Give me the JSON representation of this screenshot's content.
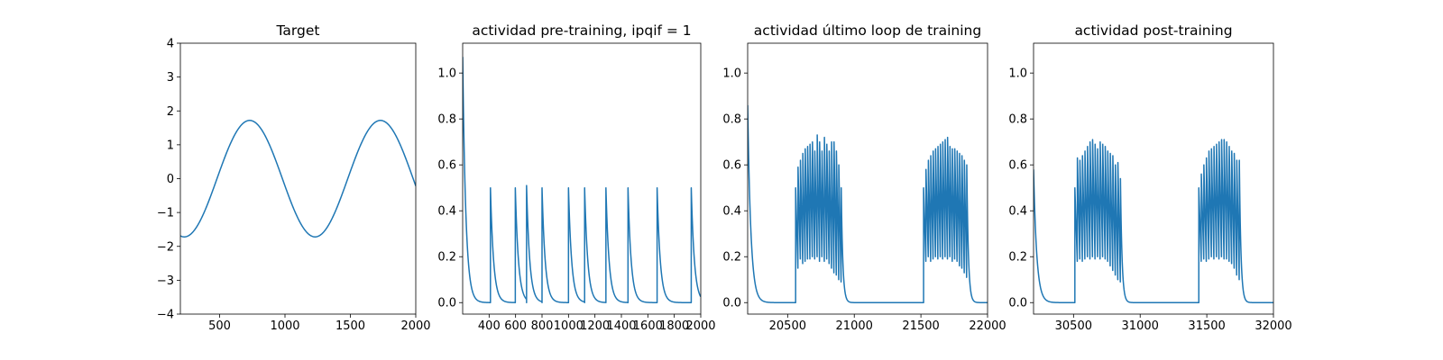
{
  "chart_data": [
    {
      "type": "line",
      "title": "Target",
      "xlabel": "",
      "ylabel": "",
      "xlim": [
        200,
        2000
      ],
      "ylim": [
        -4,
        4
      ],
      "xticks": [
        500,
        1000,
        1500,
        2000
      ],
      "yticks": [
        -4,
        -3,
        -2,
        -1,
        0,
        1,
        2,
        3,
        4
      ],
      "grid": false,
      "series": [
        {
          "color": "#1f77b4",
          "generator": "sine",
          "amplitude": 1.72,
          "period": 1000,
          "peak_x": 730,
          "x_start": 200,
          "x_end": 2000
        }
      ]
    },
    {
      "type": "line",
      "title": "actividad pre-training, ipqif = 1",
      "xlabel": "",
      "ylabel": "",
      "xlim": [
        200,
        2000
      ],
      "ylim": [
        -0.05,
        1.13
      ],
      "xticks": [
        400,
        600,
        800,
        1000,
        1200,
        1400,
        1600,
        1800,
        2000
      ],
      "yticks": [
        0.0,
        0.2,
        0.4,
        0.6,
        0.8,
        1.0
      ],
      "grid": false,
      "series": [
        {
          "color": "#1f77b4",
          "generator": "spikes",
          "initial": {
            "x": 200,
            "value": 1.07
          },
          "baseline": 0.0,
          "decay_tau": 24,
          "x_end": 2000,
          "spikes": [
            {
              "x": 410,
              "value": 0.5
            },
            {
              "x": 598,
              "value": 0.5
            },
            {
              "x": 683,
              "value": 0.51
            },
            {
              "x": 800,
              "value": 0.5
            },
            {
              "x": 1000,
              "value": 0.5
            },
            {
              "x": 1122,
              "value": 0.5
            },
            {
              "x": 1283,
              "value": 0.5
            },
            {
              "x": 1450,
              "value": 0.5
            },
            {
              "x": 1670,
              "value": 0.5
            },
            {
              "x": 1928,
              "value": 0.5
            }
          ]
        }
      ]
    },
    {
      "type": "line",
      "title": "actividad último loop de training",
      "xlabel": "",
      "ylabel": "",
      "xlim": [
        20200,
        22000
      ],
      "ylim": [
        -0.05,
        1.13
      ],
      "xticks": [
        20500,
        21000,
        21500,
        22000
      ],
      "yticks": [
        0.0,
        0.2,
        0.4,
        0.6,
        0.8,
        1.0
      ],
      "grid": false,
      "series": [
        {
          "color": "#1f77b4",
          "generator": "bursts",
          "initial": {
            "x": 20200,
            "value": 0.86
          },
          "baseline": 0.0,
          "decay_tau": 24,
          "burst_decay_tau": 12,
          "x_end": 22000,
          "bursts": [
            {
              "start": 20560,
              "spike_interval": 18,
              "peaks": [
                0.5,
                0.59,
                0.62,
                0.65,
                0.67,
                0.68,
                0.69,
                0.7,
                0.66,
                0.73,
                0.7,
                0.66,
                0.72,
                0.69,
                0.66,
                0.7,
                0.7,
                0.66,
                0.6,
                0.5
              ],
              "troughs": [
                0.15,
                0.19,
                0.17,
                0.18,
                0.19,
                0.19,
                0.2,
                0.19,
                0.2,
                0.18,
                0.2,
                0.18,
                0.19,
                0.17,
                0.15,
                0.13,
                0.12,
                0.1,
                0.09
              ]
            },
            {
              "start": 21520,
              "spike_interval": 18,
              "peaks": [
                0.5,
                0.58,
                0.62,
                0.64,
                0.66,
                0.67,
                0.68,
                0.69,
                0.7,
                0.71,
                0.72,
                0.68,
                0.67,
                0.67,
                0.66,
                0.65,
                0.64,
                0.62,
                0.6
              ],
              "troughs": [
                0.18,
                0.2,
                0.18,
                0.19,
                0.2,
                0.19,
                0.2,
                0.19,
                0.2,
                0.19,
                0.2,
                0.18,
                0.19,
                0.18,
                0.16,
                0.15,
                0.13,
                0.11
              ]
            }
          ]
        }
      ]
    },
    {
      "type": "line",
      "title": "actividad post-training",
      "xlabel": "",
      "ylabel": "",
      "xlim": [
        30200,
        32000
      ],
      "ylim": [
        -0.05,
        1.13
      ],
      "xticks": [
        30500,
        31000,
        31500,
        32000
      ],
      "yticks": [
        0.0,
        0.2,
        0.4,
        0.6,
        0.8,
        1.0
      ],
      "grid": false,
      "series": [
        {
          "color": "#1f77b4",
          "generator": "bursts",
          "initial": {
            "x": 30200,
            "value": 0.58
          },
          "baseline": 0.0,
          "decay_tau": 24,
          "burst_decay_tau": 12,
          "x_end": 32000,
          "bursts": [
            {
              "start": 30510,
              "spike_interval": 19,
              "peaks": [
                0.5,
                0.63,
                0.62,
                0.64,
                0.66,
                0.68,
                0.7,
                0.71,
                0.69,
                0.67,
                0.7,
                0.69,
                0.68,
                0.66,
                0.65,
                0.64,
                0.6,
                0.61,
                0.54
              ],
              "troughs": [
                0.18,
                0.19,
                0.18,
                0.19,
                0.2,
                0.19,
                0.2,
                0.19,
                0.2,
                0.19,
                0.2,
                0.19,
                0.18,
                0.16,
                0.14,
                0.12,
                0.1,
                0.09
              ]
            },
            {
              "start": 31440,
              "spike_interval": 19,
              "peaks": [
                0.5,
                0.56,
                0.6,
                0.63,
                0.66,
                0.67,
                0.68,
                0.69,
                0.7,
                0.71,
                0.71,
                0.7,
                0.68,
                0.66,
                0.65,
                0.62,
                0.62
              ],
              "troughs": [
                0.18,
                0.19,
                0.18,
                0.19,
                0.2,
                0.19,
                0.2,
                0.19,
                0.2,
                0.19,
                0.19,
                0.18,
                0.17,
                0.15,
                0.12,
                0.1
              ]
            }
          ]
        }
      ]
    }
  ]
}
